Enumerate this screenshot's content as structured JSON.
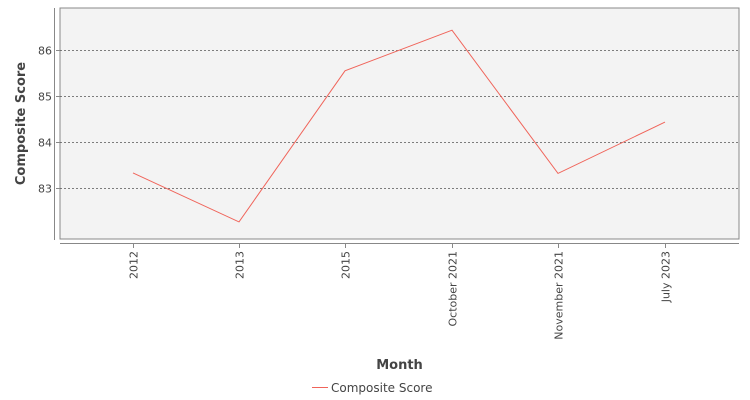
{
  "chart_data": {
    "type": "line",
    "title": "",
    "xlabel": "Month",
    "ylabel": "Composite Score",
    "categories": [
      "2012",
      "2013",
      "2015",
      "October 2021",
      "November 2021",
      "July 2023"
    ],
    "series": [
      {
        "name": "Composite Score",
        "color": "#f0645a",
        "values": [
          83.33,
          82.27,
          85.54,
          86.42,
          83.32,
          84.43
        ]
      }
    ],
    "ylim": [
      81.9,
      86.9
    ],
    "yticks": [
      83,
      84,
      85,
      86
    ],
    "grid": true,
    "legend_position": "bottom-center"
  }
}
